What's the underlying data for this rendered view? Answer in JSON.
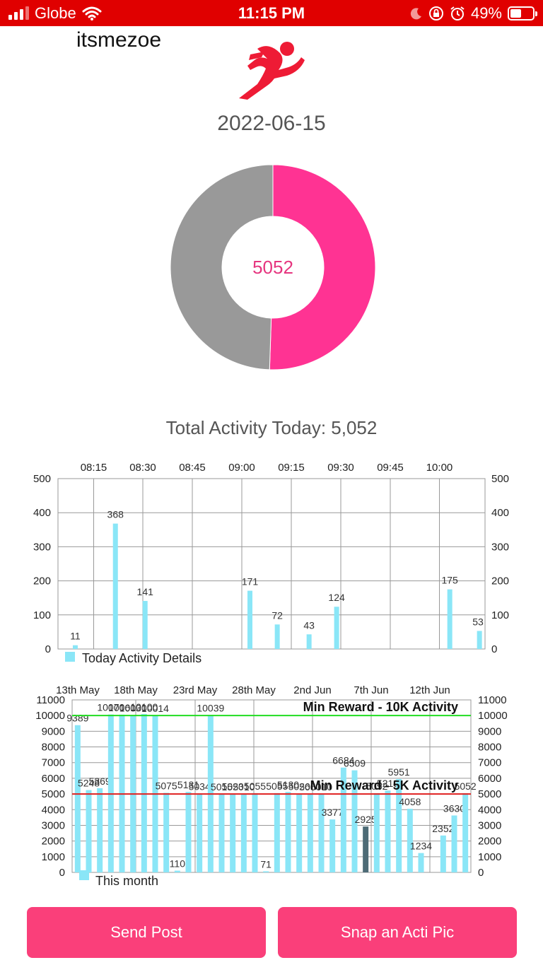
{
  "status_bar": {
    "carrier": "Globe",
    "time": "11:15 PM",
    "battery": "49%",
    "battery_level": 0.49
  },
  "user": {
    "name": "itsmezoe"
  },
  "date": "2022-06-15",
  "donut": {
    "value_label": "5052",
    "filled_fraction": 0.5052,
    "filled_color": "#ff3393",
    "remaining_color": "#999999"
  },
  "total_activity": "Total Activity Today: 5,052",
  "buttons": {
    "send_post": "Send Post",
    "snap_pic": "Snap an Acti Pic"
  },
  "colors": {
    "bar": "#8ae6f7",
    "bar_selected": "#4d6b76",
    "min_10k_line": "#22dd22",
    "min_5k_line": "#e02020"
  },
  "chart_data": [
    {
      "type": "bar",
      "legend": "Today Activity Details",
      "x_tick_labels": [
        "08:15",
        "08:30",
        "08:45",
        "09:00",
        "09:15",
        "09:30",
        "09:45",
        "10:00"
      ],
      "y_ticks": [
        0,
        100,
        200,
        300,
        400,
        500
      ],
      "ylim": [
        0,
        500
      ],
      "bars": [
        {
          "x": 8.1,
          "value": 11
        },
        {
          "x": 26.9,
          "value": 368
        },
        {
          "x": 40.8,
          "value": 141
        },
        {
          "x": 89.9,
          "value": 171
        },
        {
          "x": 102.7,
          "value": 72
        },
        {
          "x": 117.6,
          "value": 43
        },
        {
          "x": 130.5,
          "value": 124
        },
        {
          "x": 183.5,
          "value": 175
        },
        {
          "x": 197.4,
          "value": 53
        }
      ]
    },
    {
      "type": "bar",
      "legend": "This month",
      "x_tick_labels": [
        "13th May",
        "18th May",
        "23rd May",
        "28th May",
        "2nd Jun",
        "7th Jun",
        "12th Jun"
      ],
      "y_ticks": [
        0,
        1000,
        2000,
        3000,
        4000,
        5000,
        6000,
        7000,
        8000,
        9000,
        10000,
        11000
      ],
      "ylim": [
        0,
        11000
      ],
      "values": [
        9389,
        5248,
        5369,
        10070,
        10061,
        10030,
        10100,
        10014,
        5075,
        110,
        5131,
        5034,
        10039,
        5015,
        5023,
        5010,
        5055,
        71,
        5055,
        5130,
        5026,
        5000,
        5010,
        3377,
        6684,
        6509,
        2925,
        5052,
        5219,
        5951,
        4058,
        1234,
        0,
        2352,
        3630,
        5052
      ],
      "selected_index": 26,
      "reference_lines": [
        {
          "value": 10000,
          "label": "Min Reward - 10K Activity"
        },
        {
          "value": 5000,
          "label": "Min Reward - 5K Activity"
        }
      ]
    }
  ]
}
